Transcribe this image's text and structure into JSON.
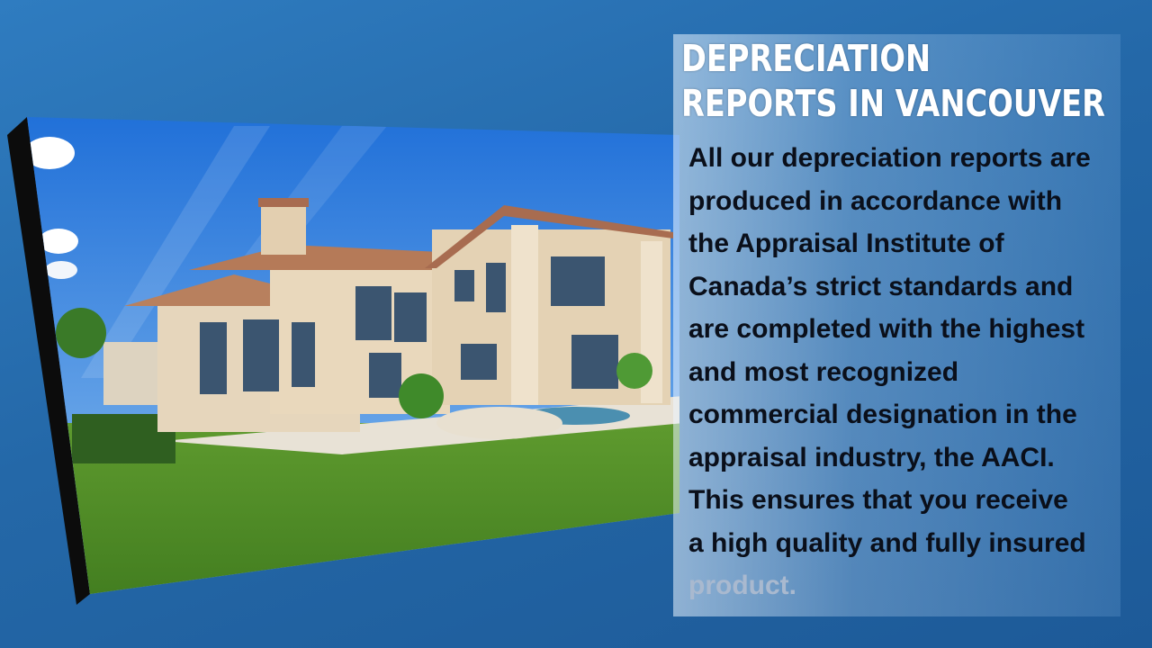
{
  "slide": {
    "title_lines": [
      "DEPRECIATION",
      "REPORTS IN VANCOUVER"
    ],
    "body_lines": [
      "All our depreciation reports are",
      "produced in accordance with",
      "the Appraisal Institute of",
      "Canada’s strict standards and",
      "are completed with the highest",
      "and most recognized",
      "commercial designation in the",
      "appraisal industry, the AACI.",
      "This ensures that you receive",
      "a high quality and fully insured",
      "product."
    ],
    "colors": {
      "background": "#2468a8",
      "title": "#ffffff",
      "body": "#0a0f1a"
    }
  }
}
